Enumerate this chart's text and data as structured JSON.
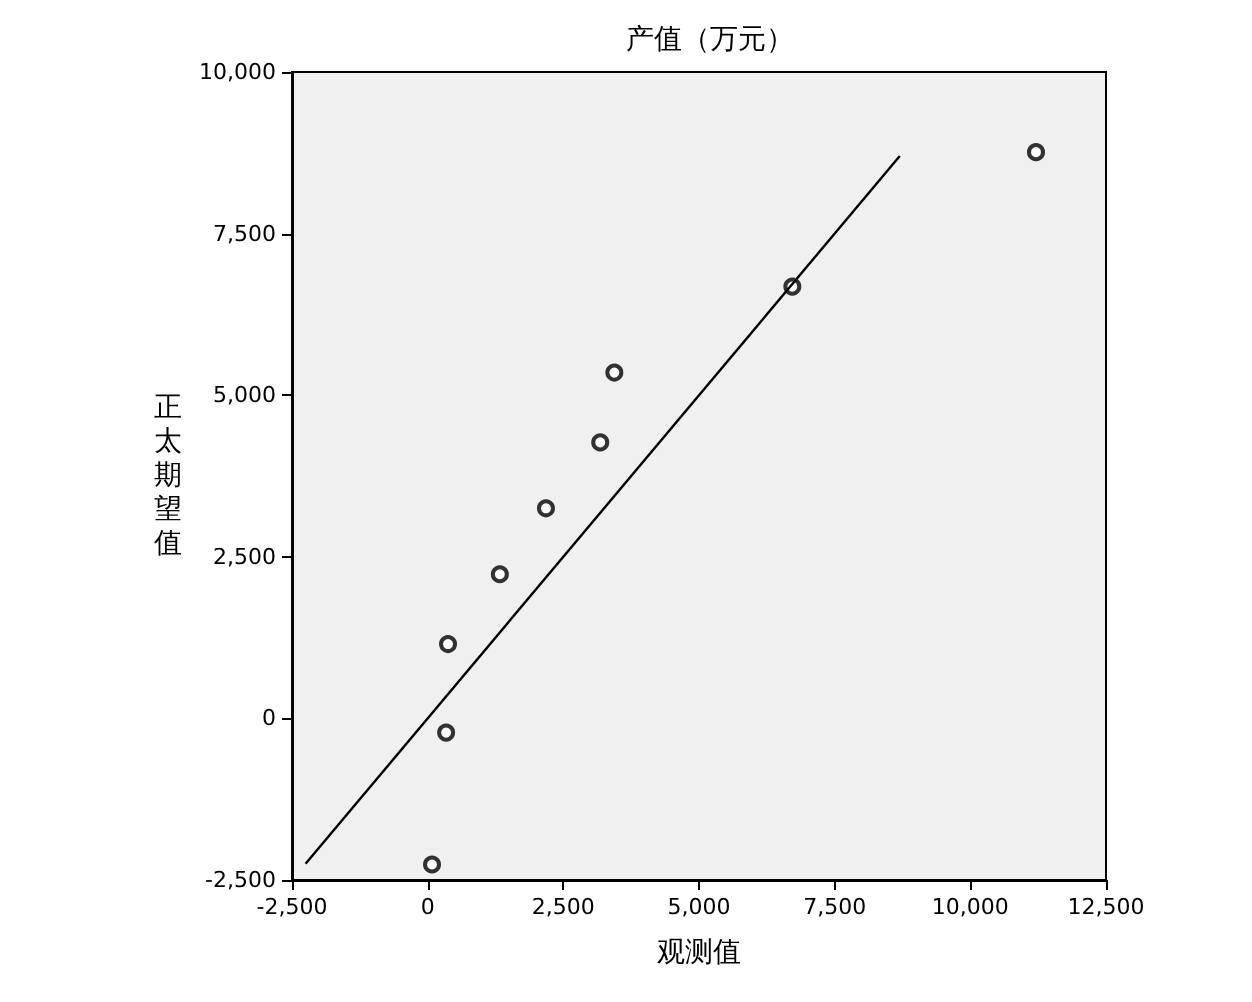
{
  "chart_data": {
    "type": "scatter",
    "title": "产值（万元）",
    "xlabel": "观测值",
    "ylabel": "正太期望值",
    "xlim": [
      -2500,
      12500
    ],
    "xticks": [
      {
        "value": -2500,
        "label": "-2,500"
      },
      {
        "value": 0,
        "label": "0"
      },
      {
        "value": 2500,
        "label": "2,500"
      },
      {
        "value": 5000,
        "label": "5,000"
      },
      {
        "value": 7500,
        "label": "7,500"
      },
      {
        "value": 10000,
        "label": "10,000"
      },
      {
        "value": 12500,
        "label": "12,500"
      }
    ],
    "ylim": [
      -2500,
      10000
    ],
    "yticks": [
      {
        "value": -2500,
        "label": "-2,500"
      },
      {
        "value": 0,
        "label": "0"
      },
      {
        "value": 2500,
        "label": "2,500"
      },
      {
        "value": 5000,
        "label": "5,000"
      },
      {
        "value": 7500,
        "label": "7,500"
      },
      {
        "value": 10000,
        "label": "10,000"
      }
    ],
    "grid": false,
    "series": [
      {
        "type": "scatter",
        "color": "#000000",
        "marker": "circle",
        "x": [
          80,
          340,
          375,
          1330,
          2180,
          3180,
          3440,
          6720,
          11210
        ],
        "values": [
          -2260,
          -220,
          1150,
          2230,
          3250,
          4270,
          5350,
          6680,
          8760
        ]
      },
      {
        "type": "line",
        "color": "#000000",
        "marker": "none",
        "x": [
          -2250,
          8700
        ],
        "values": [
          -2250,
          8700
        ]
      }
    ]
  }
}
